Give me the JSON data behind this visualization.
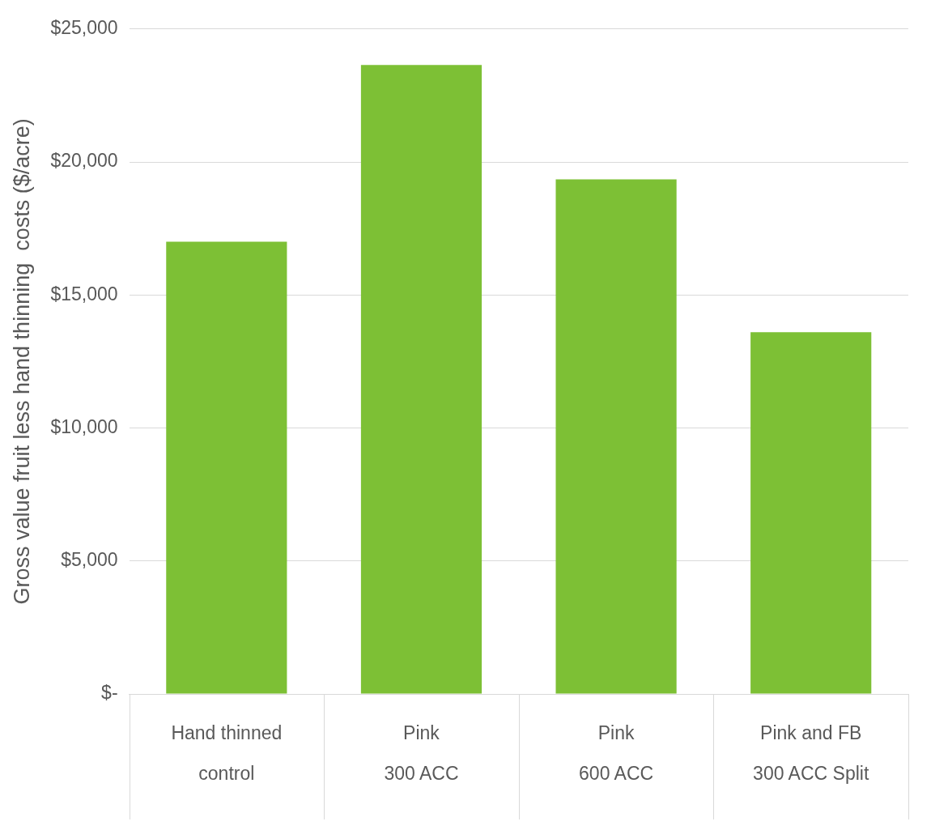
{
  "chart_data": {
    "type": "bar",
    "ylabel": "Gross value fruit less hand thinning  costs ($/acre)",
    "categories": [
      "Hand thinned\ncontrol",
      "Pink\n300 ACC",
      "Pink\n600 ACC",
      "Pink and FB\n300 ACC Split"
    ],
    "values": [
      17000,
      23650,
      19350,
      13600
    ],
    "color": "#7dc035",
    "ylim": [
      0,
      25000
    ],
    "yticks": [
      {
        "value": 0,
        "label": "$-"
      },
      {
        "value": 5000,
        "label": "$5,000"
      },
      {
        "value": 10000,
        "label": "$10,000"
      },
      {
        "value": 15000,
        "label": "$15,000"
      },
      {
        "value": 20000,
        "label": "$20,000"
      },
      {
        "value": 25000,
        "label": "$25,000"
      }
    ],
    "grid": "y",
    "legend": false
  }
}
